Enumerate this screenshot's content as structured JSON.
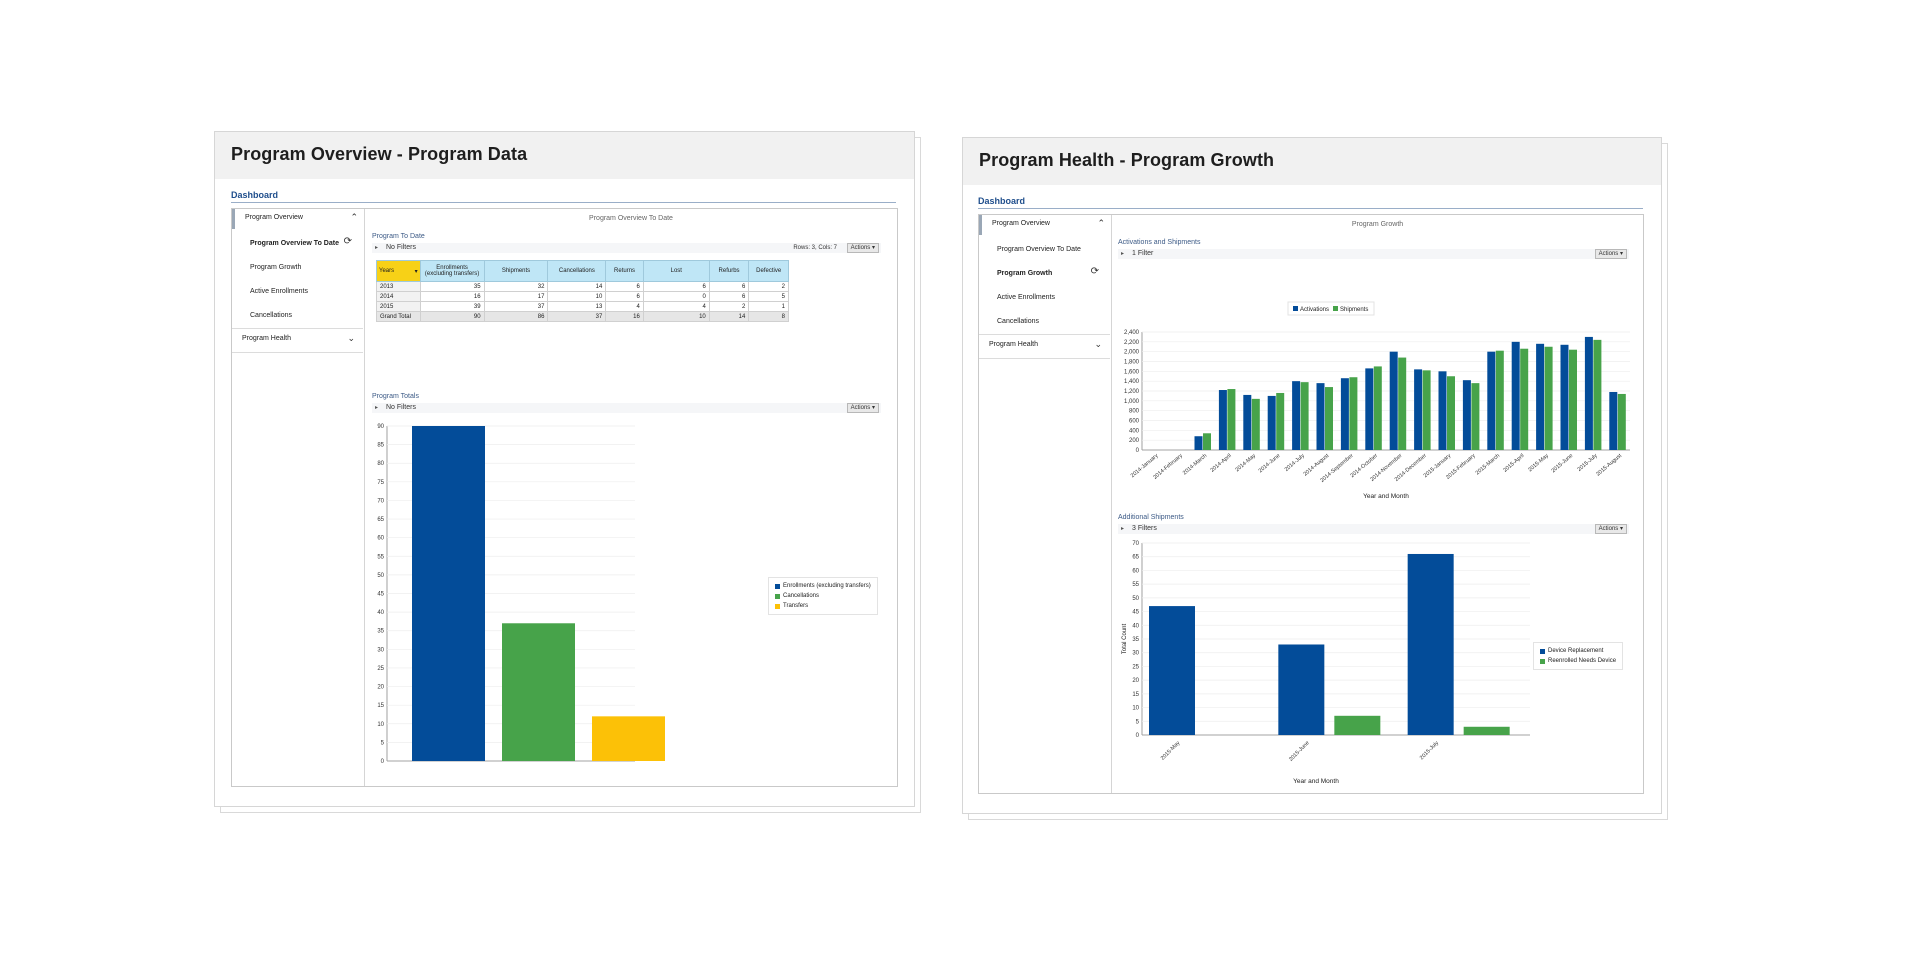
{
  "colors": {
    "blue": "#034c99",
    "green": "#47a34a",
    "yellow": "#fcc107",
    "header_cyan": "#bfe6f6",
    "years_yellow": "#f7d117"
  },
  "left_card": {
    "title": "Program Overview - Program Data",
    "dashboard_label": "Dashboard",
    "sidebar": {
      "section1": "Program Overview",
      "items": [
        "Program Overview To Date",
        "Program Growth",
        "Active Enrollments",
        "Cancellations"
      ],
      "active_item": "Program Overview To Date",
      "section2": "Program Health",
      "chevron_up": "⌃",
      "chevron_down": "⌄",
      "refresh_icon": "⟳"
    },
    "main_title": "Program Overview To Date",
    "table_section": {
      "label": "Program To Date",
      "filter": "No Filters",
      "rows_cols": "Rows: 3, Cols: 7",
      "actions": "Actions",
      "columns": [
        "Years",
        "Enrollments (excluding transfers)",
        "Shipments",
        "Cancellations",
        "Returns",
        "Lost",
        "Refurbs",
        "Defective"
      ],
      "rows": [
        [
          "2013",
          "35",
          "32",
          "14",
          "6",
          "6",
          "6",
          "2"
        ],
        [
          "2014",
          "16",
          "17",
          "10",
          "6",
          "0",
          "6",
          "5"
        ],
        [
          "2015",
          "39",
          "37",
          "13",
          "4",
          "4",
          "2",
          "1"
        ]
      ],
      "grand_total": [
        "Grand Total",
        "90",
        "86",
        "37",
        "16",
        "10",
        "14",
        "8"
      ]
    },
    "totals_section": {
      "label": "Program Totals",
      "filter": "No Filters",
      "actions": "Actions"
    },
    "chart_data": {
      "type": "bar",
      "categories": [
        "Enrollments (excluding transfers)",
        "Cancellations",
        "Transfers"
      ],
      "values": [
        90,
        37,
        12
      ],
      "colors": [
        "#034c99",
        "#47a34a",
        "#fcc107"
      ],
      "ylim": [
        0,
        90
      ],
      "yticks": [
        "0",
        "5",
        "10",
        "15",
        "20",
        "25",
        "30",
        "35",
        "40",
        "45",
        "50",
        "55",
        "60",
        "65",
        "70",
        "75",
        "80",
        "85",
        "90"
      ],
      "legend": [
        "Enrollments (excluding transfers)",
        "Cancellations",
        "Transfers"
      ],
      "legend_position": "right",
      "grid": true
    }
  },
  "right_card": {
    "title": "Program Health - Program Growth",
    "dashboard_label": "Dashboard",
    "sidebar": {
      "section1": "Program Overview",
      "items": [
        "Program Overview To Date",
        "Program Growth",
        "Active Enrollments",
        "Cancellations"
      ],
      "active_item": "Program Growth",
      "section2": "Program Health",
      "chevron_up": "⌃",
      "chevron_down": "⌄",
      "refresh_icon": "⟳"
    },
    "main_title": "Program Growth",
    "growth_section": {
      "label": "Activations and Shipments",
      "filter": "1 Filter",
      "actions": "Actions"
    },
    "shipments_section": {
      "label": "Additional Shipments",
      "filter": "3 Filters",
      "actions": "Actions"
    },
    "chart_data": [
      {
        "type": "bar",
        "xlabel": "Year and Month",
        "ylabel": "",
        "ylim": [
          0,
          2400
        ],
        "yticks": [
          "0",
          "200",
          "400",
          "600",
          "800",
          "1,000",
          "1,200",
          "1,400",
          "1,600",
          "1,800",
          "2,000",
          "2,200",
          "2,400"
        ],
        "categories": [
          "2014-January",
          "2014-February",
          "2014-March",
          "2014-April",
          "2014-May",
          "2014-June",
          "2014-July",
          "2014-August",
          "2014-September",
          "2014-October",
          "2014-November",
          "2014-December",
          "2015-January",
          "2015-February",
          "2015-March",
          "2015-April",
          "2015-May",
          "2015-June",
          "2015-July",
          "2015-August"
        ],
        "series": [
          {
            "name": "Activations",
            "color": "#034c99",
            "values": [
              0,
              0,
              280,
              1220,
              1120,
              1100,
              1400,
              1360,
              1460,
              1660,
              2000,
              1640,
              1600,
              1420,
              2000,
              2200,
              2160,
              2140,
              2300,
              1180
            ]
          },
          {
            "name": "Shipments",
            "color": "#47a34a",
            "values": [
              0,
              0,
              340,
              1240,
              1040,
              1160,
              1380,
              1280,
              1480,
              1700,
              1880,
              1620,
              1500,
              1360,
              2020,
              2060,
              2100,
              2040,
              2240,
              1140
            ]
          }
        ],
        "legend_position": "top",
        "grid": true
      },
      {
        "type": "bar",
        "xlabel": "Year and Month",
        "ylabel": "Total Count",
        "ylim": [
          0,
          70
        ],
        "yticks": [
          "0",
          "5",
          "10",
          "15",
          "20",
          "25",
          "30",
          "35",
          "40",
          "45",
          "50",
          "55",
          "60",
          "65",
          "70"
        ],
        "categories": [
          "2015-May",
          "2015-June",
          "2015-July"
        ],
        "series": [
          {
            "name": "Device Replacement",
            "color": "#034c99",
            "values": [
              47,
              33,
              66
            ]
          },
          {
            "name": "Reenrolled Needs Device",
            "color": "#47a34a",
            "values": [
              0,
              7,
              3
            ]
          }
        ],
        "legend_position": "right",
        "grid": true
      }
    ]
  }
}
